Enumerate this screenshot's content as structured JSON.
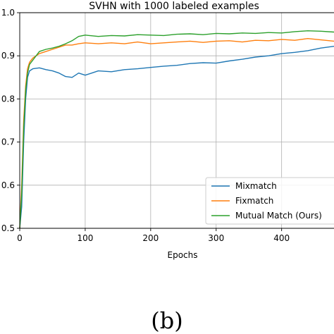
{
  "caption": "(b)",
  "chart_data": {
    "type": "line",
    "title": "SVHN with 1000 labeled examples",
    "xlabel": "Epochs",
    "ylabel": "",
    "xlim": [
      0,
      480
    ],
    "ylim": [
      0.5,
      1.0
    ],
    "xticks": [
      0,
      100,
      200,
      300,
      400
    ],
    "xtick_labels": [
      "0",
      "100",
      "200",
      "300",
      "400"
    ],
    "yticks": [
      0.5,
      0.6,
      0.7,
      0.8,
      0.9,
      1.0
    ],
    "ytick_labels": [
      "0.5",
      "0.6",
      "0.7",
      "0.8",
      "0.9",
      "1.0"
    ],
    "grid": true,
    "legend_position": "lower-right",
    "series": [
      {
        "name": "Mixmatch",
        "color": "#1f77b4",
        "x": [
          0,
          3,
          6,
          9,
          12,
          15,
          20,
          30,
          40,
          50,
          60,
          70,
          80,
          90,
          100,
          110,
          120,
          140,
          160,
          180,
          200,
          220,
          240,
          260,
          280,
          300,
          320,
          340,
          360,
          380,
          400,
          420,
          440,
          460,
          480
        ],
        "y": [
          0.5,
          0.55,
          0.7,
          0.8,
          0.85,
          0.865,
          0.87,
          0.872,
          0.868,
          0.865,
          0.86,
          0.852,
          0.85,
          0.86,
          0.855,
          0.86,
          0.865,
          0.863,
          0.868,
          0.87,
          0.873,
          0.876,
          0.878,
          0.882,
          0.884,
          0.883,
          0.888,
          0.892,
          0.897,
          0.9,
          0.905,
          0.908,
          0.912,
          0.918,
          0.922
        ]
      },
      {
        "name": "Fixmatch",
        "color": "#ff7f0e",
        "x": [
          0,
          3,
          6,
          9,
          12,
          15,
          20,
          30,
          40,
          50,
          60,
          70,
          80,
          90,
          100,
          120,
          140,
          160,
          180,
          200,
          220,
          240,
          260,
          280,
          300,
          320,
          340,
          360,
          380,
          400,
          420,
          440,
          460,
          480
        ],
        "y": [
          0.5,
          0.6,
          0.75,
          0.83,
          0.87,
          0.885,
          0.895,
          0.905,
          0.91,
          0.915,
          0.92,
          0.925,
          0.925,
          0.928,
          0.93,
          0.928,
          0.93,
          0.928,
          0.932,
          0.928,
          0.93,
          0.932,
          0.934,
          0.931,
          0.934,
          0.935,
          0.932,
          0.936,
          0.935,
          0.938,
          0.936,
          0.94,
          0.937,
          0.934
        ]
      },
      {
        "name": "Mutual Match (Ours)",
        "color": "#2ca02c",
        "x": [
          0,
          3,
          6,
          9,
          12,
          15,
          20,
          30,
          40,
          50,
          60,
          70,
          80,
          90,
          100,
          120,
          140,
          160,
          180,
          200,
          220,
          240,
          260,
          280,
          300,
          320,
          340,
          360,
          380,
          400,
          420,
          440,
          460,
          480
        ],
        "y": [
          0.5,
          0.58,
          0.73,
          0.82,
          0.86,
          0.88,
          0.89,
          0.91,
          0.915,
          0.918,
          0.922,
          0.928,
          0.935,
          0.945,
          0.948,
          0.945,
          0.947,
          0.946,
          0.949,
          0.948,
          0.947,
          0.95,
          0.951,
          0.949,
          0.952,
          0.951,
          0.953,
          0.952,
          0.954,
          0.953,
          0.956,
          0.958,
          0.957,
          0.955
        ]
      }
    ]
  }
}
